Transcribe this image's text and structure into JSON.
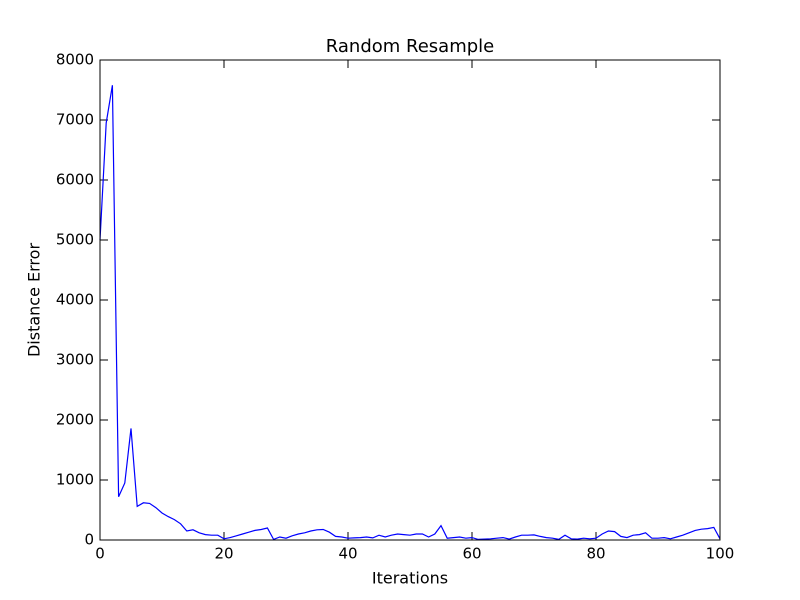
{
  "chart_data": {
    "type": "line",
    "title": "Random Resample",
    "xlabel": "Iterations",
    "ylabel": "Distance Error",
    "x": [
      0,
      1,
      2,
      3,
      4,
      5,
      6,
      7,
      8,
      9,
      10,
      11,
      12,
      13,
      14,
      15,
      16,
      17,
      18,
      19,
      20,
      21,
      22,
      23,
      24,
      25,
      26,
      27,
      28,
      29,
      30,
      31,
      32,
      33,
      34,
      35,
      36,
      37,
      38,
      39,
      40,
      41,
      42,
      43,
      44,
      45,
      46,
      47,
      48,
      49,
      50,
      51,
      52,
      53,
      54,
      55,
      56,
      57,
      58,
      59,
      60,
      61,
      62,
      63,
      64,
      65,
      66,
      67,
      68,
      69,
      70,
      71,
      72,
      73,
      74,
      75,
      76,
      77,
      78,
      79,
      80,
      81,
      82,
      83,
      84,
      85,
      86,
      87,
      88,
      89,
      90,
      91,
      92,
      93,
      94,
      95,
      96,
      97,
      98,
      99,
      100
    ],
    "values": [
      5000,
      6950,
      7580,
      720,
      950,
      1860,
      560,
      620,
      610,
      540,
      450,
      390,
      340,
      270,
      150,
      170,
      120,
      90,
      80,
      80,
      20,
      40,
      70,
      100,
      130,
      160,
      175,
      200,
      10,
      50,
      30,
      70,
      100,
      120,
      150,
      170,
      175,
      130,
      60,
      50,
      30,
      35,
      40,
      50,
      35,
      80,
      50,
      80,
      100,
      90,
      80,
      100,
      100,
      50,
      100,
      240,
      30,
      40,
      50,
      30,
      40,
      10,
      15,
      20,
      30,
      40,
      15,
      50,
      80,
      80,
      85,
      60,
      40,
      30,
      10,
      80,
      20,
      15,
      30,
      20,
      30,
      100,
      150,
      140,
      60,
      40,
      80,
      90,
      120,
      30,
      30,
      40,
      20,
      50,
      80,
      120,
      160,
      180,
      190,
      210,
      20
    ],
    "color": "#0000ff",
    "xlim": [
      0,
      100
    ],
    "xticks": [
      0,
      20,
      40,
      60,
      80,
      100
    ],
    "ylim": [
      0,
      8000
    ],
    "yticks": [
      0,
      1000,
      2000,
      3000,
      4000,
      5000,
      6000,
      7000,
      8000
    ]
  }
}
